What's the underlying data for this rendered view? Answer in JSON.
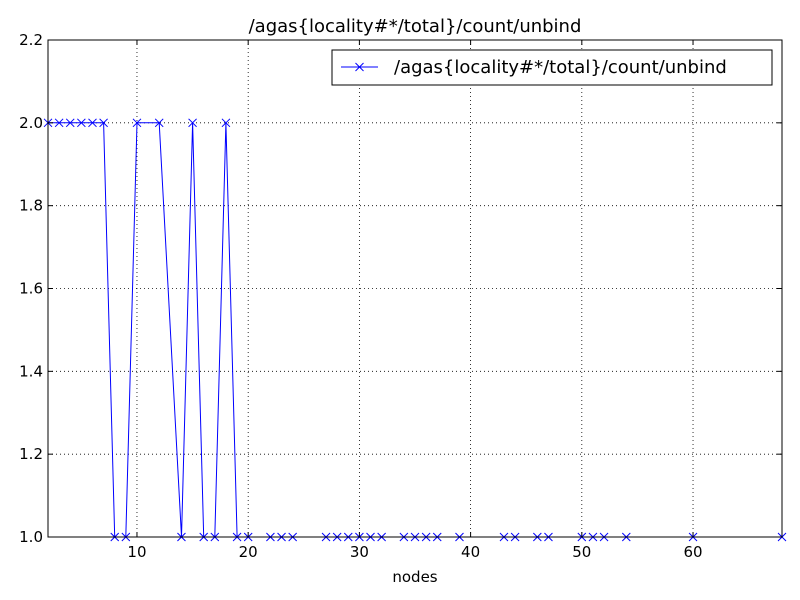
{
  "chart_data": {
    "type": "line",
    "title": "/agas{locality#*/total}/count/unbind",
    "xlabel": "nodes",
    "ylabel": "",
    "xlim": [
      2,
      68
    ],
    "ylim": [
      1.0,
      2.2
    ],
    "xticks": [
      10,
      20,
      30,
      40,
      50,
      60
    ],
    "yticks": [
      1.0,
      1.2,
      1.4,
      1.6,
      1.8,
      2.0,
      2.2
    ],
    "xtick_labels": [
      "10",
      "20",
      "30",
      "40",
      "50",
      "60"
    ],
    "ytick_labels": [
      "1.0",
      "1.2",
      "1.4",
      "1.6",
      "1.8",
      "2.0",
      "2.2"
    ],
    "grid": true,
    "legend_position": "top-right",
    "series": [
      {
        "name": "/agas{locality#*/total}/count/unbind",
        "color": "#0000ff",
        "marker": "x",
        "x": [
          2,
          3,
          4,
          5,
          6,
          7,
          8,
          9,
          10,
          12,
          14,
          15,
          16,
          17,
          18,
          19,
          20,
          22,
          23,
          24,
          27,
          28,
          29,
          30,
          31,
          32,
          34,
          35,
          36,
          37,
          39,
          43,
          44,
          46,
          47,
          50,
          51,
          52,
          54,
          60,
          68
        ],
        "y": [
          2,
          2,
          2,
          2,
          2,
          2,
          1,
          1,
          2,
          2,
          1,
          2,
          1,
          1,
          2,
          1,
          1,
          1,
          1,
          1,
          1,
          1,
          1,
          1,
          1,
          1,
          1,
          1,
          1,
          1,
          1,
          1,
          1,
          1,
          1,
          1,
          1,
          1,
          1,
          1,
          1
        ]
      }
    ]
  }
}
